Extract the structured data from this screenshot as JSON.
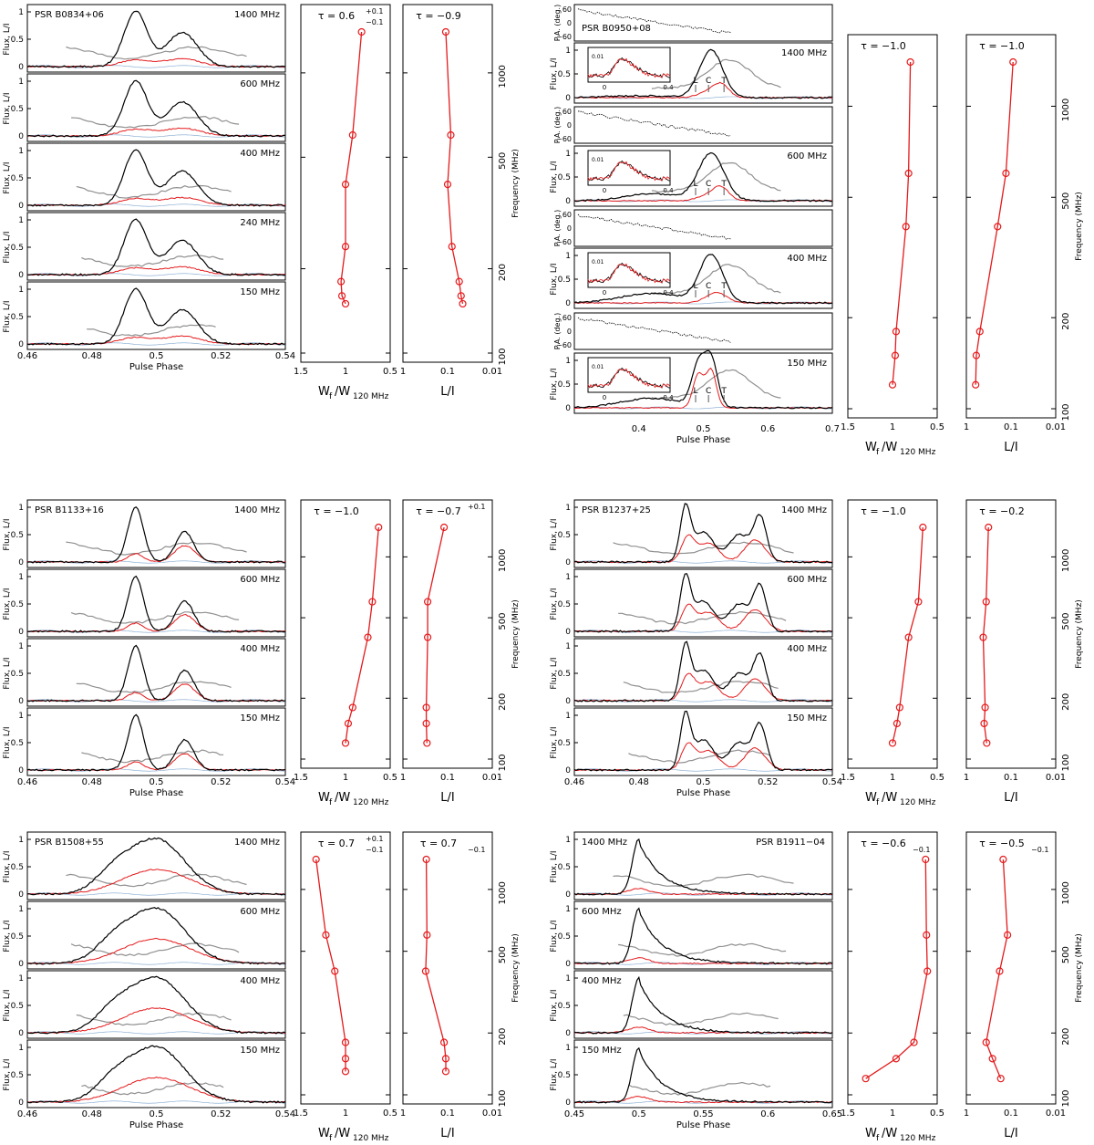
{
  "figure": {
    "common": {
      "flux_label": "Flux, L/I",
      "pa_label": "P.A. (deg.)",
      "pulse_phase_label": "Pulse Phase",
      "width_ratio_label": "W",
      "width_ratio_sub": "f",
      "width_ratio_den": "/W",
      "width_ratio_den_sub": "120 MHz",
      "pol_frac_label": "L/I",
      "frequency_label": "Frequency (MHz)",
      "freq_ticks": [
        "100",
        "200",
        "500",
        "1000"
      ],
      "w_ticks": [
        "1.5",
        "1",
        "0.5"
      ],
      "l_ticks": [
        "1",
        "0.1",
        "0.01"
      ],
      "colors": {
        "total_intensity": "#000000",
        "linear_pol": "#e41a1c",
        "circular": "#2166ac",
        "fit_model": "#909090",
        "fraction_markers": "#e41a1c"
      }
    },
    "chart_data": [
      {
        "type": "line",
        "pulsar": "PSR B0834+06",
        "bands": [
          "1400 MHz",
          "600 MHz",
          "400 MHz",
          "240 MHz",
          "150 MHz"
        ],
        "phase_ticks": [
          "0.46",
          "0.48",
          "0.5",
          "0.52",
          "0.54"
        ],
        "phase_range": [
          0.46,
          0.54
        ],
        "flux_ticks": [
          "0",
          "0.5",
          "1"
        ],
        "tau_width": "τ = 0.6",
        "tau_width_sup": "+0.1",
        "tau_width_sub": "−0.1",
        "tau_frac": "τ = −0.9",
        "series_width": [
          {
            "freq": 1400,
            "value": 0.82
          },
          {
            "freq": 600,
            "value": 0.92
          },
          {
            "freq": 400,
            "value": 1.0
          },
          {
            "freq": 240,
            "value": 1.0
          },
          {
            "freq": 180,
            "value": 1.05
          },
          {
            "freq": 160,
            "value": 1.04
          },
          {
            "freq": 150,
            "value": 1.0
          }
        ],
        "series_frac": [
          {
            "freq": 1400,
            "value": 0.11
          },
          {
            "freq": 600,
            "value": 0.085
          },
          {
            "freq": 400,
            "value": 0.1
          },
          {
            "freq": 240,
            "value": 0.08
          },
          {
            "freq": 180,
            "value": 0.055
          },
          {
            "freq": 160,
            "value": 0.05
          },
          {
            "freq": 150,
            "value": 0.046
          }
        ]
      },
      {
        "type": "line",
        "pulsar": "PSR B0950+08",
        "bands": [
          "1400 MHz",
          "600 MHz",
          "400 MHz",
          "150 MHz"
        ],
        "phase_ticks": [
          "0.4",
          "0.5",
          "0.6",
          "0.7"
        ],
        "phase_range": [
          0.3,
          0.7
        ],
        "flux_ticks": [
          "0",
          "0.5",
          "1"
        ],
        "pa_ticks": [
          "60",
          "0",
          "−60"
        ],
        "inset_ticks": [
          "0",
          "0.4"
        ],
        "inset_flux_tick": "0.01",
        "component_labels": [
          "L",
          "C",
          "T"
        ],
        "tau_width": "τ = −1.0",
        "tau_frac": "τ = −1.0",
        "series_width": [
          {
            "freq": 1400,
            "value": 0.8
          },
          {
            "freq": 600,
            "value": 0.82
          },
          {
            "freq": 400,
            "value": 0.85
          },
          {
            "freq": 180,
            "value": 0.96
          },
          {
            "freq": 150,
            "value": 0.97
          },
          {
            "freq": 120,
            "value": 1.0
          }
        ],
        "series_frac": [
          {
            "freq": 1400,
            "value": 0.09
          },
          {
            "freq": 600,
            "value": 0.13
          },
          {
            "freq": 400,
            "value": 0.2
          },
          {
            "freq": 180,
            "value": 0.5
          },
          {
            "freq": 150,
            "value": 0.6
          },
          {
            "freq": 120,
            "value": 0.62
          }
        ]
      },
      {
        "type": "line",
        "pulsar": "PSR B1133+16",
        "bands": [
          "1400 MHz",
          "600 MHz",
          "400 MHz",
          "150 MHz"
        ],
        "phase_ticks": [
          "0.46",
          "0.48",
          "0.5",
          "0.52",
          "0.54"
        ],
        "phase_range": [
          0.45,
          0.55
        ],
        "flux_ticks": [
          "0",
          "0.5",
          "1"
        ],
        "tau_width": "τ = −1.0",
        "tau_frac": "τ = −0.7",
        "tau_frac_sup": "+0.1",
        "series_width": [
          {
            "freq": 1400,
            "value": 0.63
          },
          {
            "freq": 600,
            "value": 0.7
          },
          {
            "freq": 400,
            "value": 0.75
          },
          {
            "freq": 180,
            "value": 0.92
          },
          {
            "freq": 150,
            "value": 0.97
          },
          {
            "freq": 120,
            "value": 1.0
          }
        ],
        "series_frac": [
          {
            "freq": 1400,
            "value": 0.12
          },
          {
            "freq": 600,
            "value": 0.28
          },
          {
            "freq": 400,
            "value": 0.28
          },
          {
            "freq": 180,
            "value": 0.3
          },
          {
            "freq": 150,
            "value": 0.3
          },
          {
            "freq": 120,
            "value": 0.29
          }
        ]
      },
      {
        "type": "line",
        "pulsar": "PSR B1237+25",
        "bands": [
          "1400 MHz",
          "600 MHz",
          "400 MHz",
          "150 MHz"
        ],
        "phase_ticks": [
          "0.46",
          "0.48",
          "0.5",
          "0.52",
          "0.54"
        ],
        "phase_range": [
          0.45,
          0.55
        ],
        "flux_ticks": [
          "0",
          "0.5",
          "1"
        ],
        "tau_width": "τ = −1.0",
        "tau_frac": "τ = −0.2",
        "series_width": [
          {
            "freq": 1400,
            "value": 0.66
          },
          {
            "freq": 600,
            "value": 0.71
          },
          {
            "freq": 400,
            "value": 0.82
          },
          {
            "freq": 180,
            "value": 0.92
          },
          {
            "freq": 150,
            "value": 0.95
          },
          {
            "freq": 120,
            "value": 1.0
          }
        ],
        "series_frac": [
          {
            "freq": 1400,
            "value": 0.32
          },
          {
            "freq": 600,
            "value": 0.36
          },
          {
            "freq": 400,
            "value": 0.42
          },
          {
            "freq": 180,
            "value": 0.38
          },
          {
            "freq": 150,
            "value": 0.4
          },
          {
            "freq": 120,
            "value": 0.35
          }
        ]
      },
      {
        "type": "line",
        "pulsar": "PSR B1508+55",
        "bands": [
          "1400 MHz",
          "600 MHz",
          "400 MHz",
          "150 MHz"
        ],
        "phase_ticks": [
          "0.46",
          "0.48",
          "0.5",
          "0.52",
          "0.54"
        ],
        "phase_range": [
          0.46,
          0.54
        ],
        "flux_ticks": [
          "0",
          "0.5",
          "1"
        ],
        "tau_width": "τ = 0.7",
        "tau_width_sup": "+0.1",
        "tau_width_sub": "−0.1",
        "tau_frac": "τ = 0.7",
        "tau_frac_sub": "−0.1",
        "series_width": [
          {
            "freq": 1400,
            "value": 1.33
          },
          {
            "freq": 600,
            "value": 1.22
          },
          {
            "freq": 400,
            "value": 1.12
          },
          {
            "freq": 180,
            "value": 1.0
          },
          {
            "freq": 150,
            "value": 1.0
          },
          {
            "freq": 130,
            "value": 1.0
          }
        ],
        "series_frac": [
          {
            "freq": 1400,
            "value": 0.3
          },
          {
            "freq": 600,
            "value": 0.29
          },
          {
            "freq": 400,
            "value": 0.31
          },
          {
            "freq": 180,
            "value": 0.12
          },
          {
            "freq": 150,
            "value": 0.11
          },
          {
            "freq": 130,
            "value": 0.11
          }
        ]
      },
      {
        "type": "line",
        "pulsar": "PSR B1911−04",
        "bands": [
          "1400 MHz",
          "600 MHz",
          "400 MHz",
          "150 MHz"
        ],
        "phase_ticks": [
          "0.45",
          "0.5",
          "0.55",
          "0.6",
          "0.65"
        ],
        "phase_range": [
          0.45,
          0.65
        ],
        "flux_ticks": [
          "0",
          "0.5",
          "1"
        ],
        "tau_width": "τ = −0.6",
        "tau_width_sub": "−0.1",
        "tau_frac": "τ = −0.5",
        "tau_frac_sub": "−0.1",
        "series_width": [
          {
            "freq": 1400,
            "value": 0.63
          },
          {
            "freq": 600,
            "value": 0.62
          },
          {
            "freq": 400,
            "value": 0.61
          },
          {
            "freq": 180,
            "value": 0.76
          },
          {
            "freq": 150,
            "value": 0.96
          },
          {
            "freq": 120,
            "value": 1.3
          }
        ],
        "series_frac": [
          {
            "freq": 1400,
            "value": 0.15
          },
          {
            "freq": 600,
            "value": 0.12
          },
          {
            "freq": 400,
            "value": 0.18
          },
          {
            "freq": 180,
            "value": 0.36
          },
          {
            "freq": 150,
            "value": 0.26
          },
          {
            "freq": 120,
            "value": 0.17
          }
        ]
      }
    ]
  }
}
